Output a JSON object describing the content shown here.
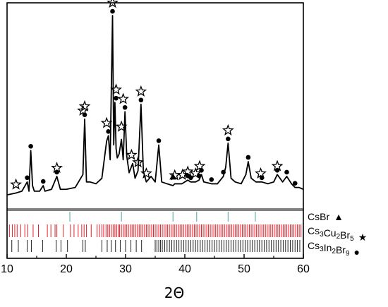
{
  "chart_data": {
    "type": "line",
    "title": "",
    "xlabel": "2Θ",
    "ylabel": "",
    "xlim": [
      10,
      60
    ],
    "x_ticks": [
      10,
      20,
      30,
      40,
      50,
      60
    ],
    "grid": false,
    "legend_placement": "bottom-right",
    "series": [
      {
        "x": [
          10.0,
          11.5,
          12.5,
          13.4,
          13.7,
          14.0,
          14.3,
          14.6,
          15.5,
          16.1,
          16.4,
          17.5,
          18.4,
          19.0,
          20.0,
          21.5,
          22.8,
          23.1,
          23.4,
          24.0,
          25.0,
          26.0,
          26.8,
          27.1,
          27.4,
          27.8,
          28.0,
          28.2,
          28.4,
          28.6,
          28.9,
          29.3,
          29.6,
          29.9,
          30.2,
          30.6,
          31.2,
          31.6,
          32.1,
          32.6,
          33.0,
          33.5,
          34.3,
          35.0,
          35.6,
          36.1,
          37.0,
          38.0,
          38.3,
          39.5,
          40.5,
          41.0,
          41.8,
          42.4,
          42.8,
          43.2,
          44.5,
          45.5,
          46.5,
          46.9,
          47.3,
          47.8,
          48.5,
          49.5,
          50.3,
          50.7,
          51.2,
          52.0,
          53.0,
          54.0,
          55.0,
          55.6,
          56.5,
          57.2,
          58.0,
          58.6,
          59.3,
          60.0
        ],
        "y": [
          0.03,
          0.04,
          0.05,
          0.1,
          0.05,
          0.27,
          0.08,
          0.05,
          0.05,
          0.08,
          0.05,
          0.06,
          0.13,
          0.06,
          0.06,
          0.07,
          0.14,
          0.44,
          0.1,
          0.1,
          0.09,
          0.12,
          0.32,
          0.35,
          0.22,
          1.0,
          0.3,
          0.53,
          0.28,
          0.23,
          0.25,
          0.33,
          0.22,
          0.48,
          0.24,
          0.15,
          0.2,
          0.12,
          0.16,
          0.52,
          0.16,
          0.1,
          0.13,
          0.1,
          0.3,
          0.1,
          0.09,
          0.08,
          0.09,
          0.09,
          0.11,
          0.1,
          0.1,
          0.11,
          0.14,
          0.1,
          0.09,
          0.09,
          0.13,
          0.18,
          0.31,
          0.12,
          0.1,
          0.09,
          0.14,
          0.21,
          0.12,
          0.1,
          0.1,
          0.09,
          0.1,
          0.14,
          0.1,
          0.13,
          0.09,
          0.07,
          0.07,
          0.06
        ]
      }
    ],
    "phase_markers": [
      {
        "symbol": "star",
        "x": [
          11.5,
          18.4,
          22.8,
          23.1,
          26.8,
          27.8,
          28.4,
          29.3,
          29.6,
          31.0,
          32.1,
          32.6,
          33.5,
          38.3,
          39.6,
          40.5,
          41.8,
          42.5,
          47.3,
          52.8,
          55.6
        ]
      },
      {
        "symbol": "circle",
        "x": [
          13.4,
          14.0,
          16.1,
          18.4,
          23.1,
          27.1,
          27.8,
          28.4,
          29.9,
          32.6,
          35.6,
          40.5,
          41.0,
          42.4,
          42.8,
          44.5,
          46.5,
          47.3,
          50.7,
          53.0,
          55.6,
          57.2,
          58.6
        ]
      },
      {
        "symbol": "triangle",
        "x": [
          38.0
        ]
      }
    ],
    "reference_patterns": [
      {
        "label_base": "CsBr",
        "label_sub": [],
        "symbol": "▲",
        "color": "#4aa3a3",
        "positions": [
          20.6,
          29.3,
          38.0,
          42.0,
          47.3,
          51.9
        ]
      },
      {
        "label_base": "Cs3Cu2Br5",
        "label_sub": [
          "3",
          "2",
          "5"
        ],
        "symbol": "★",
        "color": "#e8202a",
        "positions": [
          10.4,
          10.9,
          11.3,
          11.7,
          12.3,
          13.0,
          13.5,
          14.4,
          15.3,
          16.8,
          17.4,
          18.1,
          18.4,
          19.5,
          20.7,
          21.3,
          22.0,
          22.6,
          23.0,
          23.4,
          24.2,
          25.2,
          25.6,
          26.0,
          26.3,
          26.7,
          27.0,
          27.3,
          27.6,
          27.9,
          28.2,
          28.5,
          28.8,
          29.0,
          29.3,
          29.6,
          29.9,
          30.2,
          30.5,
          30.8,
          31.1,
          31.4,
          31.7,
          32.0,
          32.3,
          32.6,
          32.9,
          33.2,
          33.5,
          33.8,
          34.1,
          34.4,
          34.7,
          35.0,
          35.3,
          35.6,
          35.9,
          36.2,
          36.5,
          36.8,
          37.1,
          37.4,
          37.7,
          38.0,
          38.3,
          38.6,
          38.9,
          39.2,
          39.5,
          39.8,
          40.1,
          40.4,
          40.7,
          41.0,
          41.3,
          41.6,
          41.9,
          42.2,
          42.5,
          42.8,
          43.1,
          43.4,
          43.7,
          44.0,
          44.3,
          44.6,
          44.9,
          45.2,
          45.5,
          45.8,
          46.1,
          46.4,
          46.7,
          47.0,
          47.3,
          47.6,
          47.9,
          48.2,
          48.5,
          48.8,
          49.1,
          49.4,
          49.7,
          50.0,
          50.3,
          50.6,
          50.9,
          51.2,
          51.5,
          51.8,
          52.1,
          52.4,
          52.7,
          53.0,
          53.3,
          53.6,
          53.9,
          54.2,
          54.5,
          54.8,
          55.1,
          55.4,
          55.7,
          56.0,
          56.3,
          56.6,
          56.9,
          57.2,
          57.5,
          57.8,
          58.1,
          58.4,
          58.7,
          59.0,
          59.3,
          59.6
        ]
      },
      {
        "label_base": "Cs3In2Br9",
        "label_sub": [
          "3",
          "2",
          "9"
        ],
        "symbol": "●",
        "color": "#222222",
        "positions": [
          10.8,
          11.9,
          13.4,
          14.1,
          16.0,
          18.3,
          19.1,
          20.2,
          22.8,
          23.2,
          26.0,
          26.9,
          27.6,
          28.3,
          29.1,
          30.0,
          30.9,
          31.8,
          32.7,
          35.0,
          35.3,
          35.6,
          35.9,
          36.2,
          36.6,
          37.0,
          37.4,
          37.8,
          38.2,
          38.6,
          39.0,
          39.4,
          39.8,
          40.2,
          40.6,
          41.0,
          41.4,
          41.8,
          42.2,
          42.6,
          43.0,
          43.4,
          43.8,
          44.2,
          44.6,
          45.0,
          45.4,
          45.8,
          46.2,
          46.6,
          47.0,
          47.4,
          47.8,
          48.2,
          48.6,
          49.0,
          49.4,
          49.8,
          50.2,
          50.6,
          51.0,
          51.4,
          51.8,
          52.2,
          52.6,
          53.0,
          53.4,
          53.8,
          54.2,
          54.6,
          55.0,
          55.4,
          55.8,
          56.2,
          56.6,
          57.0,
          57.4,
          57.8,
          58.2,
          58.6,
          59.0,
          59.4
        ]
      }
    ]
  }
}
